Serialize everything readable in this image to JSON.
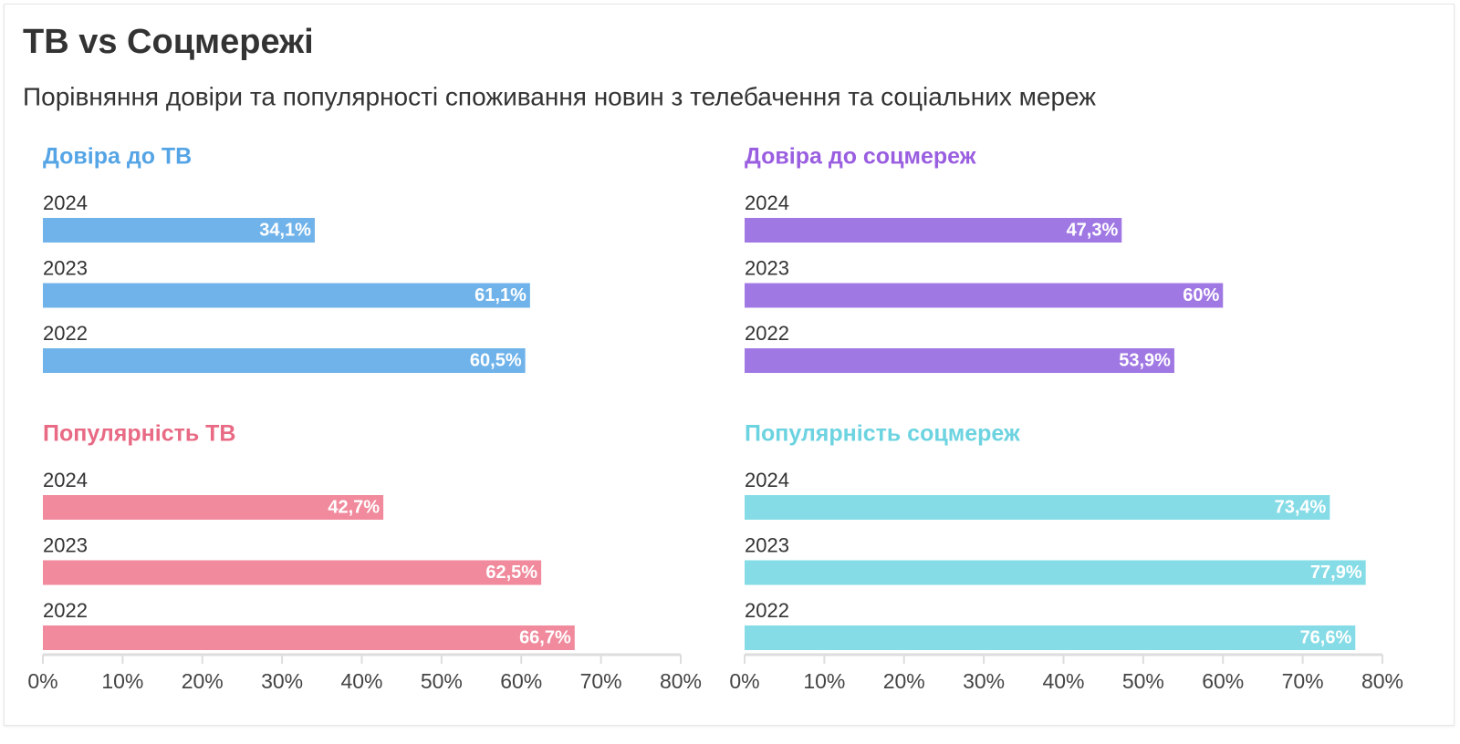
{
  "header": {
    "title": "ТВ vs Соцмережі",
    "subtitle": "Порівняння довіри та популярності споживання новин з телебачення та соціальних мереж"
  },
  "chart_data": [
    {
      "type": "bar",
      "title": "Довіра до ТВ",
      "color": "#6fb3ea",
      "title_color": "#55a5e6",
      "categories": [
        "2024",
        "2023",
        "2022"
      ],
      "values": [
        34.1,
        61.1,
        60.5
      ],
      "value_labels": [
        "34,1%",
        "61,1%",
        "60,5%"
      ],
      "xlim": [
        0,
        80
      ]
    },
    {
      "type": "bar",
      "title": "Довіра до соцмереж",
      "color": "#a078e4",
      "title_color": "#9a5ee0",
      "categories": [
        "2024",
        "2023",
        "2022"
      ],
      "values": [
        47.3,
        60,
        53.9
      ],
      "value_labels": [
        "47,3%",
        "60%",
        "53,9%"
      ],
      "xlim": [
        0,
        80
      ]
    },
    {
      "type": "bar",
      "title": "Популярність ТВ",
      "color": "#f08a9c",
      "title_color": "#e86a84",
      "categories": [
        "2024",
        "2023",
        "2022"
      ],
      "values": [
        42.7,
        62.5,
        66.7
      ],
      "value_labels": [
        "42,7%",
        "62,5%",
        "66,7%"
      ],
      "xlim": [
        0,
        80
      ],
      "xticks": [
        {
          "value": 0,
          "label": "0%"
        },
        {
          "value": 10,
          "label": "10%"
        },
        {
          "value": 20,
          "label": "20%"
        },
        {
          "value": 30,
          "label": "30%"
        },
        {
          "value": 40,
          "label": "40%"
        },
        {
          "value": 50,
          "label": "50%"
        },
        {
          "value": 60,
          "label": "60%"
        },
        {
          "value": 70,
          "label": "70%"
        },
        {
          "value": 80,
          "label": "80%"
        }
      ]
    },
    {
      "type": "bar",
      "title": "Популярність соцмереж",
      "color": "#86dce6",
      "title_color": "#6cd3e0",
      "categories": [
        "2024",
        "2023",
        "2022"
      ],
      "values": [
        73.4,
        77.9,
        76.6
      ],
      "value_labels": [
        "73,4%",
        "77,9%",
        "76,6%"
      ],
      "xlim": [
        0,
        80
      ],
      "xticks": [
        {
          "value": 0,
          "label": "0%"
        },
        {
          "value": 10,
          "label": "10%"
        },
        {
          "value": 20,
          "label": "20%"
        },
        {
          "value": 30,
          "label": "30%"
        },
        {
          "value": 40,
          "label": "40%"
        },
        {
          "value": 50,
          "label": "50%"
        },
        {
          "value": 60,
          "label": "60%"
        },
        {
          "value": 70,
          "label": "70%"
        },
        {
          "value": 80,
          "label": "80%"
        }
      ]
    }
  ]
}
